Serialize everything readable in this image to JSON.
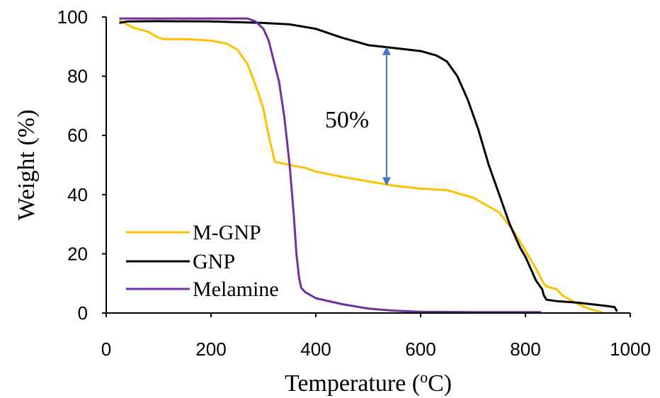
{
  "chart_data": {
    "type": "line",
    "title": "",
    "xlabel": "Temperature (",
    "xlabel_sup": "o",
    "xlabel_end": "C)",
    "ylabel": "Weight  (%)",
    "xlim": [
      0,
      1000
    ],
    "ylim": [
      0,
      100
    ],
    "x_ticks": [
      "0",
      "200",
      "400",
      "600",
      "800",
      "1000"
    ],
    "y_ticks": [
      "0",
      "20",
      "40",
      "60",
      "80",
      "100"
    ],
    "grid": false,
    "legend_position": "bottom-left",
    "annotation": {
      "text": "50%",
      "x": 535,
      "y_top": 90,
      "y_bottom": 43,
      "color": "#4472c4"
    },
    "series": [
      {
        "name": "M-GNP",
        "color": "#ffc000",
        "points": [
          [
            25,
            99
          ],
          [
            50,
            96.5
          ],
          [
            80,
            95
          ],
          [
            100,
            93
          ],
          [
            110,
            92.5
          ],
          [
            150,
            92.5
          ],
          [
            200,
            92
          ],
          [
            230,
            91
          ],
          [
            250,
            89
          ],
          [
            270,
            84
          ],
          [
            285,
            77
          ],
          [
            300,
            69
          ],
          [
            310,
            60
          ],
          [
            318,
            54
          ],
          [
            322,
            51
          ],
          [
            330,
            50.8
          ],
          [
            350,
            50
          ],
          [
            380,
            49
          ],
          [
            400,
            47.8
          ],
          [
            450,
            46
          ],
          [
            500,
            44.5
          ],
          [
            550,
            43
          ],
          [
            600,
            42
          ],
          [
            650,
            41.5
          ],
          [
            700,
            39
          ],
          [
            750,
            34
          ],
          [
            780,
            27
          ],
          [
            800,
            21
          ],
          [
            820,
            15
          ],
          [
            835,
            10
          ],
          [
            840,
            9
          ],
          [
            850,
            8.5
          ],
          [
            860,
            8
          ],
          [
            870,
            6
          ],
          [
            900,
            3
          ],
          [
            920,
            1.5
          ],
          [
            940,
            0.5
          ],
          [
            950,
            0
          ]
        ]
      },
      {
        "name": "GNP",
        "color": "#000000",
        "points": [
          [
            25,
            98
          ],
          [
            40,
            98.5
          ],
          [
            100,
            98.6
          ],
          [
            200,
            98.5
          ],
          [
            300,
            98
          ],
          [
            350,
            97.5
          ],
          [
            400,
            96
          ],
          [
            450,
            93
          ],
          [
            500,
            90.5
          ],
          [
            550,
            89.5
          ],
          [
            600,
            88.5
          ],
          [
            630,
            87
          ],
          [
            650,
            85
          ],
          [
            670,
            80
          ],
          [
            690,
            72
          ],
          [
            710,
            62
          ],
          [
            730,
            50
          ],
          [
            750,
            40
          ],
          [
            770,
            30
          ],
          [
            790,
            22
          ],
          [
            800,
            19
          ],
          [
            810,
            15
          ],
          [
            820,
            11
          ],
          [
            828,
            9
          ],
          [
            832,
            8
          ],
          [
            835,
            6
          ],
          [
            840,
            4.5
          ],
          [
            860,
            4
          ],
          [
            900,
            3.5
          ],
          [
            950,
            2.5
          ],
          [
            970,
            2
          ],
          [
            975,
            0.5
          ]
        ]
      },
      {
        "name": "Melamine",
        "color": "#7030a0",
        "points": [
          [
            25,
            99.5
          ],
          [
            100,
            99.5
          ],
          [
            200,
            99.5
          ],
          [
            250,
            99.5
          ],
          [
            270,
            99.5
          ],
          [
            285,
            98.5
          ],
          [
            300,
            96
          ],
          [
            310,
            92
          ],
          [
            320,
            85
          ],
          [
            330,
            78
          ],
          [
            340,
            66
          ],
          [
            350,
            50
          ],
          [
            358,
            33
          ],
          [
            363,
            20
          ],
          [
            368,
            12
          ],
          [
            372,
            8.5
          ],
          [
            380,
            7
          ],
          [
            400,
            5
          ],
          [
            450,
            3
          ],
          [
            500,
            1.5
          ],
          [
            550,
            0.8
          ],
          [
            600,
            0.4
          ],
          [
            700,
            0.3
          ],
          [
            800,
            0.3
          ],
          [
            830,
            0.3
          ]
        ]
      }
    ]
  }
}
